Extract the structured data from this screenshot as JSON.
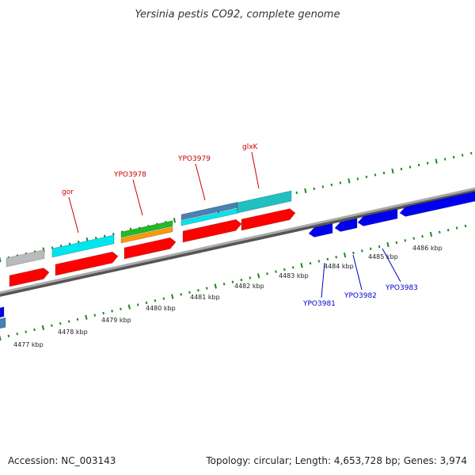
{
  "title": "Yersinia pestis CO92, complete genome",
  "footer": {
    "accession": "Accession: NC_003143",
    "summary": "Topology: circular; Length: 4,653,728 bp; Genes: 3,974"
  },
  "colors": {
    "backbone": "#888888",
    "tick": "#1a8a1a",
    "forward_label": "#cc0000",
    "reverse_label": "#0000cc",
    "red": "#ff0000",
    "cyan": "#00e5ee",
    "grey": "#bbbbbb",
    "green": "#22bb22",
    "orange": "#ff9900",
    "steelblue": "#4682b4",
    "teal": "#20c0c0",
    "blue": "#0000ee"
  },
  "scale_labels": [
    "4477 kbp",
    "4478 kbp",
    "4479 kbp",
    "4480 kbp",
    "4481 kbp",
    "4482 kbp",
    "4483 kbp",
    "4484 kbp",
    "4485 kbp",
    "4486 kbp"
  ],
  "forward_gene_labels": [
    "gor",
    "YPO3978",
    "YPO3979",
    "glxK"
  ],
  "reverse_gene_labels": [
    "YPO3981",
    "YPO3982",
    "YPO3983"
  ]
}
